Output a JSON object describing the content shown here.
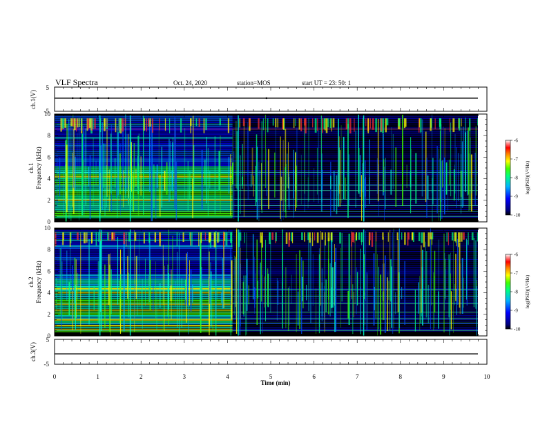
{
  "header": {
    "title": "VLF Spectra",
    "date": "Oct. 24, 2020",
    "station": "station=MOS",
    "start": "start  UT  =   23: 50: 1"
  },
  "chart_data": [
    {
      "type": "line",
      "panel": "ch1-waveform",
      "ylabel": "ch.1(V)",
      "ylim": [
        -5,
        5
      ],
      "yticks": [
        "5",
        "-5"
      ],
      "xlim": [
        0,
        10
      ],
      "series": [
        {
          "x": [
            0,
            9.8
          ],
          "values": [
            0,
            0
          ]
        }
      ]
    },
    {
      "type": "heatmap",
      "panel": "ch1-spectrogram",
      "ylabel": "ch.1\nFrequency (kHz)",
      "ylim": [
        0,
        10
      ],
      "yticks": [
        "0",
        "2",
        "4",
        "6",
        "8",
        "10"
      ],
      "xlim": [
        0,
        10
      ],
      "data_extent_min": 9.8,
      "colorbar": {
        "label": "log(PSD)(V²/Hz)",
        "range": [
          -10,
          -6
        ],
        "ticks": [
          "-6",
          "-7",
          "-8",
          "-9",
          "-10"
        ]
      }
    },
    {
      "type": "heatmap",
      "panel": "ch2-spectrogram",
      "ylabel": "ch.2\nFrequency (kHz)",
      "ylim": [
        0,
        10
      ],
      "yticks": [
        "0",
        "2",
        "4",
        "6",
        "8",
        "10"
      ],
      "xlim": [
        0,
        10
      ],
      "data_extent_min": 9.8,
      "colorbar": {
        "label": "log(PSD)(V²/Hz)",
        "range": [
          -10,
          -6
        ],
        "ticks": [
          "-6",
          "-7",
          "-8",
          "-9",
          "-10"
        ]
      }
    },
    {
      "type": "line",
      "panel": "ch3-waveform",
      "ylabel": "ch.3(V)",
      "ylim": [
        -5,
        5
      ],
      "yticks": [
        "5",
        "-5"
      ],
      "xlim": [
        0,
        10
      ],
      "xticks": [
        "0",
        "1",
        "2",
        "3",
        "4",
        "5",
        "6",
        "7",
        "8",
        "9",
        "10"
      ],
      "xlabel": "Time  (min)",
      "series": [
        {
          "x": [
            0,
            9.8
          ],
          "values": [
            0,
            0
          ]
        }
      ]
    }
  ]
}
